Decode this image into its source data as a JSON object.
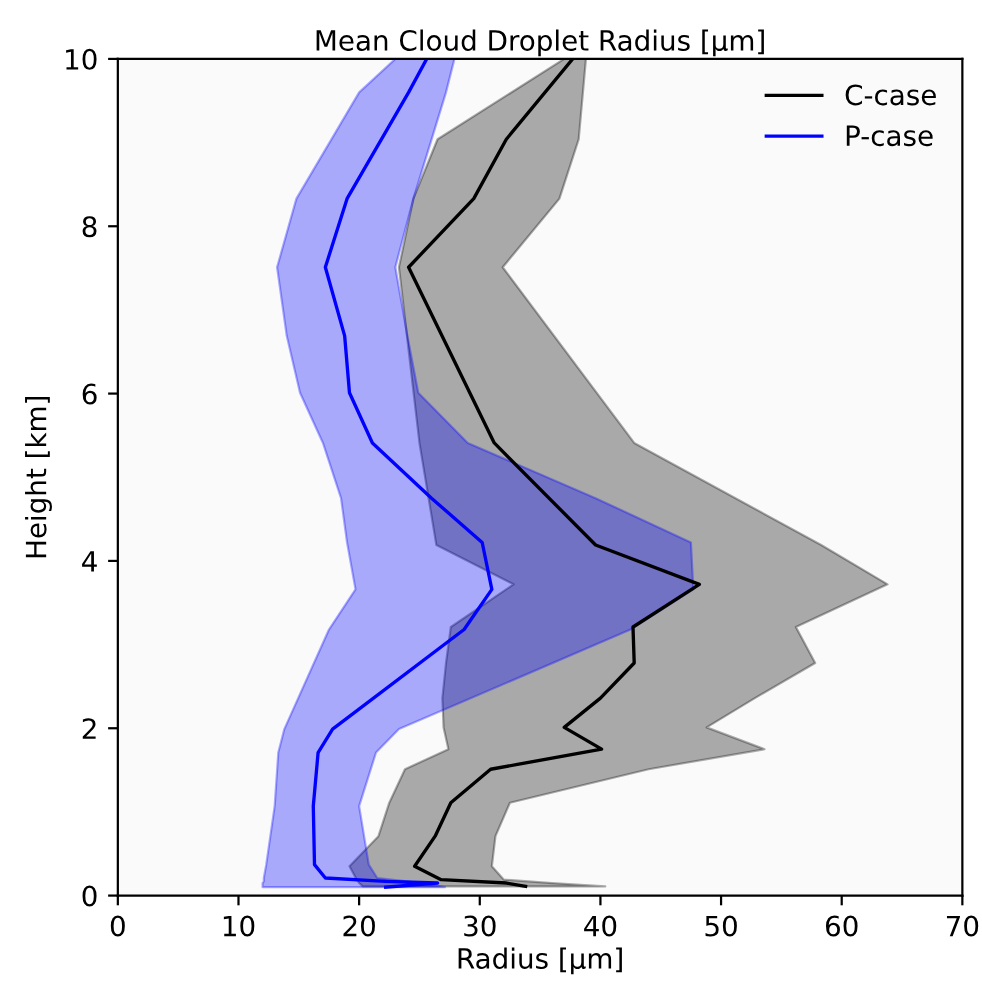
{
  "chart_data": {
    "type": "line",
    "orientation": "horizontal",
    "title": "Mean Cloud Droplet Radius [μm]",
    "xlabel": "Radius [μm]",
    "ylabel": "Height [km]",
    "xlim": [
      0,
      70
    ],
    "xticks": [
      0,
      10,
      20,
      30,
      40,
      50,
      60,
      70
    ],
    "ylim": [
      0,
      10
    ],
    "yticks": [
      0,
      2,
      4,
      6,
      8,
      10
    ],
    "grid": false,
    "legend": "top right",
    "marker": "none",
    "line_style": "solid",
    "series": [
      {
        "name": "C-case",
        "color": "#000000",
        "x": [
          0.11,
          0.15,
          0.19,
          0.35,
          0.71,
          1.11,
          1.51,
          1.75,
          2.01,
          2.36,
          2.78,
          3.21,
          3.72,
          4.19,
          5.41,
          7.51,
          8.33,
          9.04,
          10.0
        ],
        "values": [
          33.8,
          32.2,
          26.8,
          24.6,
          26.3,
          27.6,
          30.9,
          40.1,
          37.0,
          40.0,
          42.8,
          42.7,
          48.2,
          39.6,
          31.2,
          24.1,
          29.5,
          32.2,
          37.7
        ],
        "lower": [
          20.3,
          20.0,
          19.8,
          19.2,
          21.6,
          22.5,
          23.8,
          27.4,
          27.0,
          26.9,
          27.2,
          27.6,
          32.8,
          26.4,
          25.0,
          23.3,
          24.5,
          26.5,
          37.0
        ],
        "upper": [
          40.4,
          36.0,
          32.0,
          31.0,
          31.3,
          32.5,
          44.0,
          53.6,
          48.8,
          52.8,
          57.8,
          56.2,
          63.8,
          58.3,
          42.8,
          31.9,
          36.6,
          38.2,
          38.8
        ]
      },
      {
        "name": "P-case",
        "color": "#0000ff",
        "x": [
          0.1,
          0.15,
          0.17,
          0.21,
          0.37,
          1.07,
          1.71,
          1.99,
          3.18,
          3.66,
          4.22,
          4.75,
          5.41,
          6.01,
          6.69,
          7.51,
          8.33,
          9.6,
          10.0
        ],
        "values": [
          22.2,
          26.5,
          22.2,
          17.2,
          16.3,
          16.2,
          16.6,
          17.8,
          28.7,
          31.0,
          30.2,
          26.0,
          21.1,
          19.2,
          18.8,
          17.2,
          19.0,
          24.1,
          25.6
        ],
        "lower": [
          12.0,
          12.0,
          12.1,
          12.1,
          12.3,
          13.0,
          13.3,
          13.8,
          17.5,
          19.7,
          19.0,
          18.5,
          17.0,
          15.1,
          14.0,
          13.2,
          14.8,
          20.0,
          23.0
        ],
        "upper": [
          27.1,
          25.0,
          24.0,
          21.5,
          20.8,
          20.0,
          21.4,
          23.3,
          42.5,
          47.7,
          47.5,
          39.6,
          29.0,
          24.9,
          24.0,
          23.0,
          24.5,
          27.2,
          27.9
        ]
      }
    ]
  }
}
